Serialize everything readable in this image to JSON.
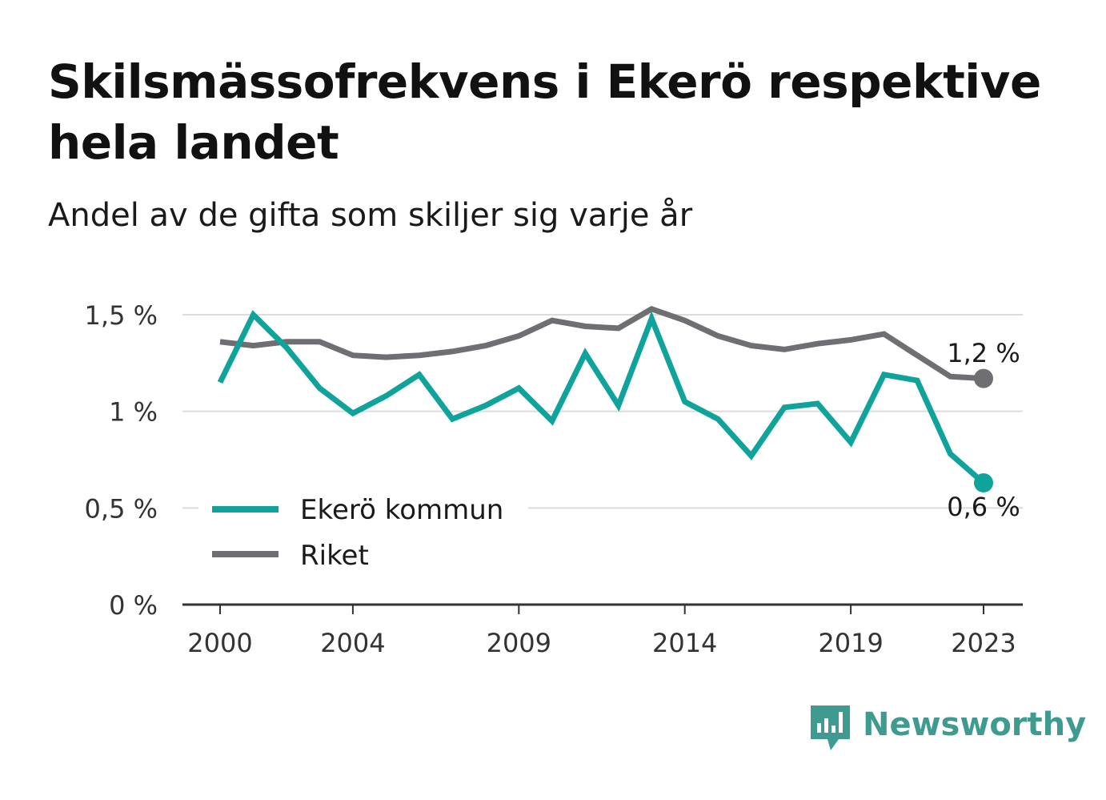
{
  "title": "Skilsmässofrekvens i Ekerö respektive hela landet",
  "subtitle": "Andel av de gifta som skiljer sig varje år",
  "brand": {
    "name": "Newsworthy",
    "icon": "newsworthy-logo-icon",
    "color": "#3f9b8f"
  },
  "colors": {
    "ekero": "#0fa39b",
    "riket": "#6e6e73",
    "grid": "#dcdcdc",
    "axis": "#333333"
  },
  "chart_data": {
    "type": "line",
    "x": [
      2000,
      2001,
      2002,
      2003,
      2004,
      2005,
      2006,
      2007,
      2008,
      2009,
      2010,
      2011,
      2012,
      2013,
      2014,
      2015,
      2016,
      2017,
      2018,
      2019,
      2020,
      2021,
      2022,
      2023
    ],
    "x_ticks": [
      2000,
      2004,
      2009,
      2014,
      2019,
      2023
    ],
    "x_tick_labels": [
      "2000",
      "2004",
      "2009",
      "2014",
      "2019",
      "2023"
    ],
    "xlim": [
      2000,
      2023
    ],
    "ylim": [
      0,
      1.5
    ],
    "y_ticks": [
      0,
      0.5,
      1,
      1.5
    ],
    "y_tick_labels": [
      "0 %",
      "0,5 %",
      "1 %",
      "1,5 %"
    ],
    "grid": true,
    "legend_position": "bottom-left",
    "series": [
      {
        "name": "Ekerö kommun",
        "color": "#0fa39b",
        "values": [
          1.15,
          1.5,
          1.33,
          1.12,
          0.99,
          1.08,
          1.19,
          0.96,
          1.03,
          1.12,
          0.95,
          1.3,
          1.03,
          1.48,
          1.05,
          0.96,
          0.77,
          1.02,
          1.04,
          0.84,
          1.19,
          1.16,
          0.78,
          0.63
        ],
        "end_label": "0,6 %"
      },
      {
        "name": "Riket",
        "color": "#6e6e73",
        "values": [
          1.36,
          1.34,
          1.36,
          1.36,
          1.29,
          1.28,
          1.29,
          1.31,
          1.34,
          1.39,
          1.47,
          1.44,
          1.43,
          1.53,
          1.47,
          1.39,
          1.34,
          1.32,
          1.35,
          1.37,
          1.4,
          1.29,
          1.18,
          1.17
        ],
        "end_label": "1,2 %"
      }
    ]
  }
}
